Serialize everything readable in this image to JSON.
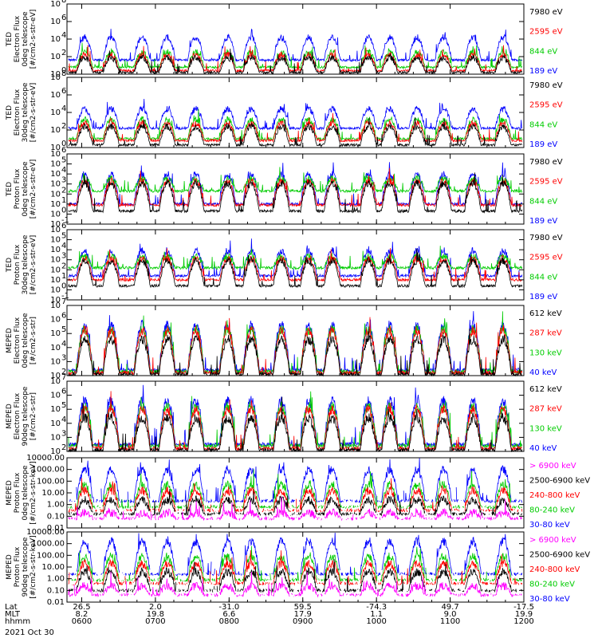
{
  "chart_data": {
    "type": "line",
    "date": "2021 Oct 30",
    "x_rows": {
      "labels": [
        "Lat",
        "MLT",
        "hhmm"
      ],
      "ticks": [
        {
          "lat": "26.5",
          "mlt": "8.2",
          "hhmm": "0600"
        },
        {
          "lat": "2.0",
          "mlt": "19.8",
          "hhmm": "0700"
        },
        {
          "lat": "-31.0",
          "mlt": "6.6",
          "hhmm": "0800"
        },
        {
          "lat": "59.5",
          "mlt": "17.9",
          "hhmm": "0900"
        },
        {
          "lat": "-74.3",
          "mlt": "1.1",
          "hhmm": "1000"
        },
        {
          "lat": "49.7",
          "mlt": "9.0",
          "hhmm": "1100"
        },
        {
          "lat": "-17.5",
          "mlt": "19.9",
          "hhmm": "1200"
        }
      ]
    },
    "pass_centers_hours": [
      6.04,
      6.4,
      6.82,
      7.16,
      7.55,
      7.98,
      8.3,
      8.71,
      9.08,
      9.4,
      9.89,
      10.18,
      10.55,
      10.91,
      11.31,
      11.72
    ],
    "panels": [
      {
        "ylabel": [
          "TED",
          "Electron Flux",
          "0deg telescope",
          "[#/cm2-s-str-eV]"
        ],
        "ylog": [
          0,
          8
        ],
        "yticks": [
          {
            "v": 0,
            "t": "10"
          },
          {
            "v": 2,
            "t": "10"
          },
          {
            "v": 4,
            "t": "10"
          },
          {
            "v": 6,
            "t": "10"
          },
          {
            "v": 8,
            "t": "10"
          }
        ],
        "ytick_exp": [
          "0",
          "2",
          "4",
          "6",
          "8"
        ],
        "series": [
          {
            "name": "7980 eV",
            "color": "#000000",
            "peak": 1.9,
            "base": 0.2
          },
          {
            "name": "2595 eV",
            "color": "#ff0000",
            "peak": 2.2,
            "base": 0.4
          },
          {
            "name": "844 eV",
            "color": "#00cc00",
            "peak": 2.5,
            "base": 0.8
          },
          {
            "name": "189 eV",
            "color": "#0000ff",
            "peak": 4.2,
            "base": 1.6
          }
        ]
      },
      {
        "ylabel": [
          "TED",
          "Electron Flux",
          "30deg telescope",
          "[#/cm2-s-str-eV]"
        ],
        "ylog": [
          0,
          8
        ],
        "yticks": [
          {
            "v": 0,
            "t": "10"
          },
          {
            "v": 2,
            "t": "10"
          },
          {
            "v": 4,
            "t": "10"
          },
          {
            "v": 6,
            "t": "10"
          },
          {
            "v": 8,
            "t": "10"
          }
        ],
        "ytick_exp": [
          "0",
          "2",
          "4",
          "6",
          "8"
        ],
        "series": [
          {
            "name": "7980 eV",
            "color": "#000000",
            "peak": 2.4,
            "base": 0.3
          },
          {
            "name": "2595 eV",
            "color": "#ff0000",
            "peak": 2.8,
            "base": 0.8
          },
          {
            "name": "844 eV",
            "color": "#00cc00",
            "peak": 3.2,
            "base": 1.0
          },
          {
            "name": "189 eV",
            "color": "#0000ff",
            "peak": 4.4,
            "base": 2.2
          }
        ]
      },
      {
        "ylabel": [
          "TED",
          "Proton Flux",
          "0deg telescope",
          "[#/cm2-s-str-eV]"
        ],
        "ylog": [
          -1,
          6
        ],
        "yticks": [
          {
            "v": -1,
            "t": "10"
          },
          {
            "v": 0,
            "t": "10"
          },
          {
            "v": 1,
            "t": "10"
          },
          {
            "v": 2,
            "t": "10"
          },
          {
            "v": 3,
            "t": "10"
          },
          {
            "v": 4,
            "t": "10"
          },
          {
            "v": 5,
            "t": "10"
          },
          {
            "v": 6,
            "t": "10"
          }
        ],
        "ytick_exp": [
          "-1",
          "0",
          "1",
          "2",
          "3",
          "4",
          "5",
          "6"
        ],
        "series": [
          {
            "name": "7980 eV",
            "color": "#000000",
            "peak": 3.1,
            "base": 0.3
          },
          {
            "name": "2595 eV",
            "color": "#ff0000",
            "peak": 3.3,
            "base": 0.9
          },
          {
            "name": "844 eV",
            "color": "#00cc00",
            "peak": 3.5,
            "base": 2.3
          },
          {
            "name": "189 eV",
            "color": "#0000ff",
            "peak": 4.0,
            "base": 1.0
          }
        ]
      },
      {
        "ylabel": [
          "TED",
          "Proton Flux",
          "30deg telescope",
          "[#/cm2-s-str-eV]"
        ],
        "ylog": [
          -1,
          6
        ],
        "yticks": [
          {
            "v": -1,
            "t": "10"
          },
          {
            "v": 0,
            "t": "10"
          },
          {
            "v": 1,
            "t": "10"
          },
          {
            "v": 2,
            "t": "10"
          },
          {
            "v": 3,
            "t": "10"
          },
          {
            "v": 4,
            "t": "10"
          },
          {
            "v": 5,
            "t": "10"
          },
          {
            "v": 6,
            "t": "10"
          }
        ],
        "ytick_exp": [
          "-1",
          "0",
          "1",
          "2",
          "3",
          "4",
          "5",
          "6"
        ],
        "series": [
          {
            "name": "7980 eV",
            "color": "#000000",
            "peak": 2.9,
            "base": 0.4
          },
          {
            "name": "2595 eV",
            "color": "#ff0000",
            "peak": 3.1,
            "base": 1.0
          },
          {
            "name": "844 eV",
            "color": "#00cc00",
            "peak": 3.3,
            "base": 2.2
          },
          {
            "name": "189 eV",
            "color": "#0000ff",
            "peak": 3.9,
            "base": 1.4
          }
        ]
      },
      {
        "ylabel": [
          "MEPED",
          "Electron Flux",
          "0deg telescope",
          "[#/cm2-s-str]"
        ],
        "ylog": [
          2,
          7
        ],
        "yticks": [
          {
            "v": 2,
            "t": "10"
          },
          {
            "v": 3,
            "t": "10"
          },
          {
            "v": 4,
            "t": "10"
          },
          {
            "v": 5,
            "t": "10"
          },
          {
            "v": 6,
            "t": "10"
          },
          {
            "v": 7,
            "t": "10"
          }
        ],
        "ytick_exp": [
          "2",
          "3",
          "4",
          "5",
          "6",
          "7"
        ],
        "series": [
          {
            "name": "612 keV",
            "color": "#000000",
            "peak": 4.6,
            "base": 2.1
          },
          {
            "name": "287 keV",
            "color": "#ff0000",
            "peak": 5.2,
            "base": 2.2
          },
          {
            "name": "130 keV",
            "color": "#00cc00",
            "peak": 5.3,
            "base": 2.3
          },
          {
            "name": "40 keV",
            "color": "#0000ff",
            "peak": 5.6,
            "base": 2.4
          }
        ]
      },
      {
        "ylabel": [
          "MEPED",
          "Electron Flux",
          "90deg telescope",
          "[#/cm2-s-str]"
        ],
        "ylog": [
          2,
          7
        ],
        "yticks": [
          {
            "v": 2,
            "t": "10"
          },
          {
            "v": 3,
            "t": "10"
          },
          {
            "v": 4,
            "t": "10"
          },
          {
            "v": 5,
            "t": "10"
          },
          {
            "v": 6,
            "t": "10"
          },
          {
            "v": 7,
            "t": "10"
          }
        ],
        "ytick_exp": [
          "2",
          "3",
          "4",
          "5",
          "6",
          "7"
        ],
        "series": [
          {
            "name": "612 keV",
            "color": "#000000",
            "peak": 4.4,
            "base": 2.1
          },
          {
            "name": "287 keV",
            "color": "#ff0000",
            "peak": 5.0,
            "base": 2.2
          },
          {
            "name": "130 keV",
            "color": "#00cc00",
            "peak": 5.2,
            "base": 2.4
          },
          {
            "name": "40 keV",
            "color": "#0000ff",
            "peak": 5.6,
            "base": 2.5
          }
        ]
      },
      {
        "ylabel": [
          "MEPED",
          "Proton Flux",
          "0deg telescope",
          "[#/cm2-s-str-keV]"
        ],
        "ylog": [
          -2,
          4
        ],
        "yticks": [
          {
            "v": -2,
            "t": "0.01"
          },
          {
            "v": -1,
            "t": "0.10"
          },
          {
            "v": 0,
            "t": "1.00"
          },
          {
            "v": 1,
            "t": "10.00"
          },
          {
            "v": 2,
            "t": "100.00"
          },
          {
            "v": 3,
            "t": "1000.00"
          },
          {
            "v": 4,
            "t": "10000.00"
          }
        ],
        "ytick_exp": [],
        "series": [
          {
            "name": "> 6900 keV",
            "color": "#ff00ff",
            "peak": -0.7,
            "base": -1.2
          },
          {
            "name": "2500-6900 keV",
            "color": "#000000",
            "peak": 0.4,
            "base": -0.8
          },
          {
            "name": "240-800 keV",
            "color": "#ff0000",
            "peak": 1.2,
            "base": -0.5
          },
          {
            "name": "80-240 keV",
            "color": "#00cc00",
            "peak": 1.7,
            "base": -0.2
          },
          {
            "name": "30-80 keV",
            "color": "#0000ff",
            "peak": 3.0,
            "base": 0.3
          }
        ]
      },
      {
        "ylabel": [
          "MEPED",
          "Proton Flux",
          "90deg telescope",
          "[#/cm2-s-str-keV]"
        ],
        "ylog": [
          -2,
          4
        ],
        "yticks": [
          {
            "v": -2,
            "t": "0.01"
          },
          {
            "v": -1,
            "t": "0.10"
          },
          {
            "v": 0,
            "t": "1.00"
          },
          {
            "v": 1,
            "t": "10.00"
          },
          {
            "v": 2,
            "t": "100.00"
          },
          {
            "v": 3,
            "t": "1000.00"
          },
          {
            "v": 4,
            "t": "10000.00"
          }
        ],
        "ytick_exp": [],
        "series": [
          {
            "name": "> 6900 keV",
            "color": "#ff00ff",
            "peak": -0.6,
            "base": -1.4
          },
          {
            "name": "2500-6900 keV",
            "color": "#000000",
            "peak": 0.6,
            "base": -1.0
          },
          {
            "name": "240-800 keV",
            "color": "#ff0000",
            "peak": 1.3,
            "base": -0.4
          },
          {
            "name": "80-240 keV",
            "color": "#00cc00",
            "peak": 1.9,
            "base": -0.1
          },
          {
            "name": "30-80 keV",
            "color": "#0000ff",
            "peak": 3.2,
            "base": 0.4
          }
        ]
      }
    ]
  }
}
